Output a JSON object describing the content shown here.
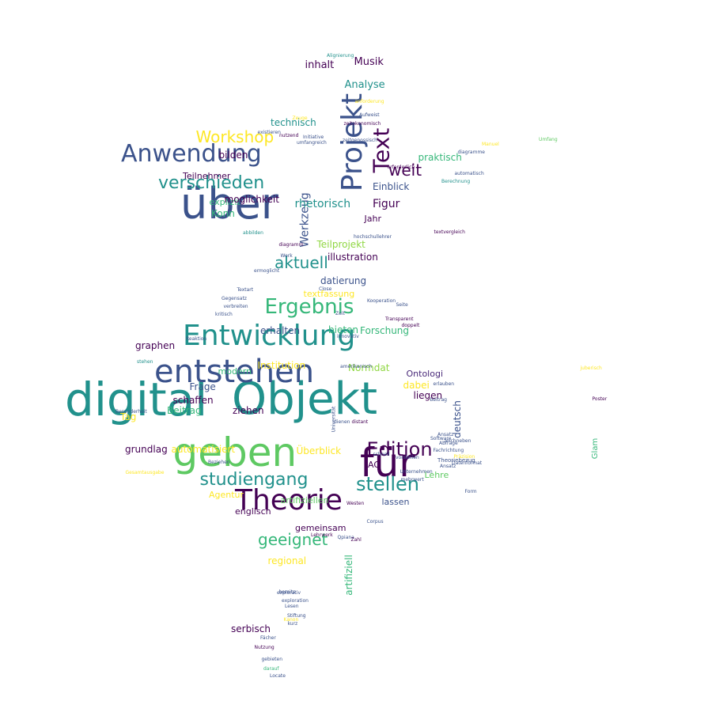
{
  "palette": [
    "#440154",
    "#3b528b",
    "#21918c",
    "#5ec962",
    "#fde725",
    "#31688e",
    "#35b779",
    "#90d743",
    "#482878"
  ],
  "words": [
    {
      "text": "digital"
    },
    {
      "text": "Objekt"
    },
    {
      "text": "über"
    },
    {
      "text": "entstehen"
    },
    {
      "text": "geben"
    },
    {
      "text": "für"
    },
    {
      "text": "Theorie"
    },
    {
      "text": "Entwicklung"
    },
    {
      "text": "Projekt"
    },
    {
      "text": "Anwendung"
    },
    {
      "text": "Text"
    },
    {
      "text": "Ergebnis"
    },
    {
      "text": "verschieden"
    },
    {
      "text": "Edition"
    },
    {
      "text": "stellen"
    },
    {
      "text": "studiengang"
    },
    {
      "text": "Workshop"
    },
    {
      "text": "geeignet"
    },
    {
      "text": "aktuell"
    },
    {
      "text": "weit"
    },
    {
      "text": "Werkzeug"
    },
    {
      "text": "rhetorisch"
    },
    {
      "text": "Figur"
    },
    {
      "text": "Einblick"
    },
    {
      "text": "praktisch"
    },
    {
      "text": "Analyse"
    },
    {
      "text": "Musik"
    },
    {
      "text": "inhalt"
    },
    {
      "text": "technisch"
    },
    {
      "text": "bilden"
    },
    {
      "text": "Teilnehmer"
    },
    {
      "text": "explizit"
    },
    {
      "text": "moglichkeit"
    },
    {
      "text": "Konn"
    },
    {
      "text": "Jahr"
    },
    {
      "text": "Teilprojekt"
    },
    {
      "text": "illustration"
    },
    {
      "text": "datierung"
    },
    {
      "text": "textfassung"
    },
    {
      "text": "erhalten"
    },
    {
      "text": "bieten"
    },
    {
      "text": "Forschung"
    },
    {
      "text": "Institution"
    },
    {
      "text": "Normdat"
    },
    {
      "text": "Ontologi"
    },
    {
      "text": "graphen"
    },
    {
      "text": "modern"
    },
    {
      "text": "dabei"
    },
    {
      "text": "Frage"
    },
    {
      "text": "schaffen"
    },
    {
      "text": "liegen"
    },
    {
      "text": "deutsch"
    },
    {
      "text": "ziehen"
    },
    {
      "text": "Beitrag"
    },
    {
      "text": "Tag"
    },
    {
      "text": "grundlag"
    },
    {
      "text": "automatisiert"
    },
    {
      "text": "Überblick"
    },
    {
      "text": "AG"
    },
    {
      "text": "Lehre"
    },
    {
      "text": "Agentur"
    },
    {
      "text": "englisch"
    },
    {
      "text": "artifiziellen"
    },
    {
      "text": "lassen"
    },
    {
      "text": "gemeinsam"
    },
    {
      "text": "regional"
    },
    {
      "text": "artifiziell"
    },
    {
      "text": "serbisch"
    },
    {
      "text": "Glam"
    },
    {
      "text": "Theoriebezug"
    },
    {
      "text": "Alignierung"
    },
    {
      "text": "anforderung"
    },
    {
      "text": "Aufweist"
    },
    {
      "text": "zeitokonomisch"
    },
    {
      "text": "diagramme"
    },
    {
      "text": "automatisch"
    },
    {
      "text": "Berechnung"
    },
    {
      "text": "erforderlich"
    },
    {
      "text": "hochschullehrer"
    },
    {
      "text": "textvergleich"
    },
    {
      "text": "Kooperation"
    },
    {
      "text": "Transparent"
    },
    {
      "text": "doppelt"
    },
    {
      "text": "amerikanisch"
    },
    {
      "text": "Manuel"
    },
    {
      "text": "Umfang"
    },
    {
      "text": "juberisch"
    },
    {
      "text": "Poster"
    },
    {
      "text": "stehen"
    },
    {
      "text": "Reaktion"
    },
    {
      "text": "kritisch"
    },
    {
      "text": "Gegensatz"
    },
    {
      "text": "verbreiten"
    },
    {
      "text": "Textart"
    },
    {
      "text": "ermoglicht"
    },
    {
      "text": "Werk"
    },
    {
      "text": "diagramm"
    },
    {
      "text": "abbilden"
    },
    {
      "text": "umfangreich"
    },
    {
      "text": "Initiative"
    },
    {
      "text": "existieren"
    },
    {
      "text": "zeitgenossisch"
    },
    {
      "text": "Zeuge"
    },
    {
      "text": "nutzend"
    },
    {
      "text": "Nutzung"
    },
    {
      "text": "gebieten"
    },
    {
      "text": "Locate"
    },
    {
      "text": "darauf"
    },
    {
      "text": "Fachrichtung"
    },
    {
      "text": "Unternehmen"
    },
    {
      "text": "Datenformat"
    },
    {
      "text": "Ansatz"
    },
    {
      "text": "Form"
    },
    {
      "text": "Corpus"
    },
    {
      "text": "Qpiana"
    },
    {
      "text": "Lehrwerk"
    },
    {
      "text": "Zahl"
    },
    {
      "text": "exploration"
    },
    {
      "text": "explorativ"
    },
    {
      "text": "kurz"
    },
    {
      "text": "Lesen"
    },
    {
      "text": "bereits"
    },
    {
      "text": "Kanon"
    },
    {
      "text": "Software"
    },
    {
      "text": "Seite"
    },
    {
      "text": "Zeit"
    },
    {
      "text": "Close"
    },
    {
      "text": "Besonderheit"
    },
    {
      "text": "Gesamtausgabe"
    },
    {
      "text": "Beziehen"
    },
    {
      "text": "dienen"
    },
    {
      "text": "Universität"
    },
    {
      "text": "innovativ"
    },
    {
      "text": "Stiftung"
    },
    {
      "text": "schnell"
    },
    {
      "text": "Fächer"
    },
    {
      "text": "vorstellen"
    },
    {
      "text": "mehrwert"
    },
    {
      "text": "Präzision"
    },
    {
      "text": "Abfrage"
    },
    {
      "text": "Ansatz"
    },
    {
      "text": "zeichneben"
    },
    {
      "text": "erlauben"
    },
    {
      "text": "beitrag"
    },
    {
      "text": "distant"
    },
    {
      "text": "Westen"
    }
  ]
}
